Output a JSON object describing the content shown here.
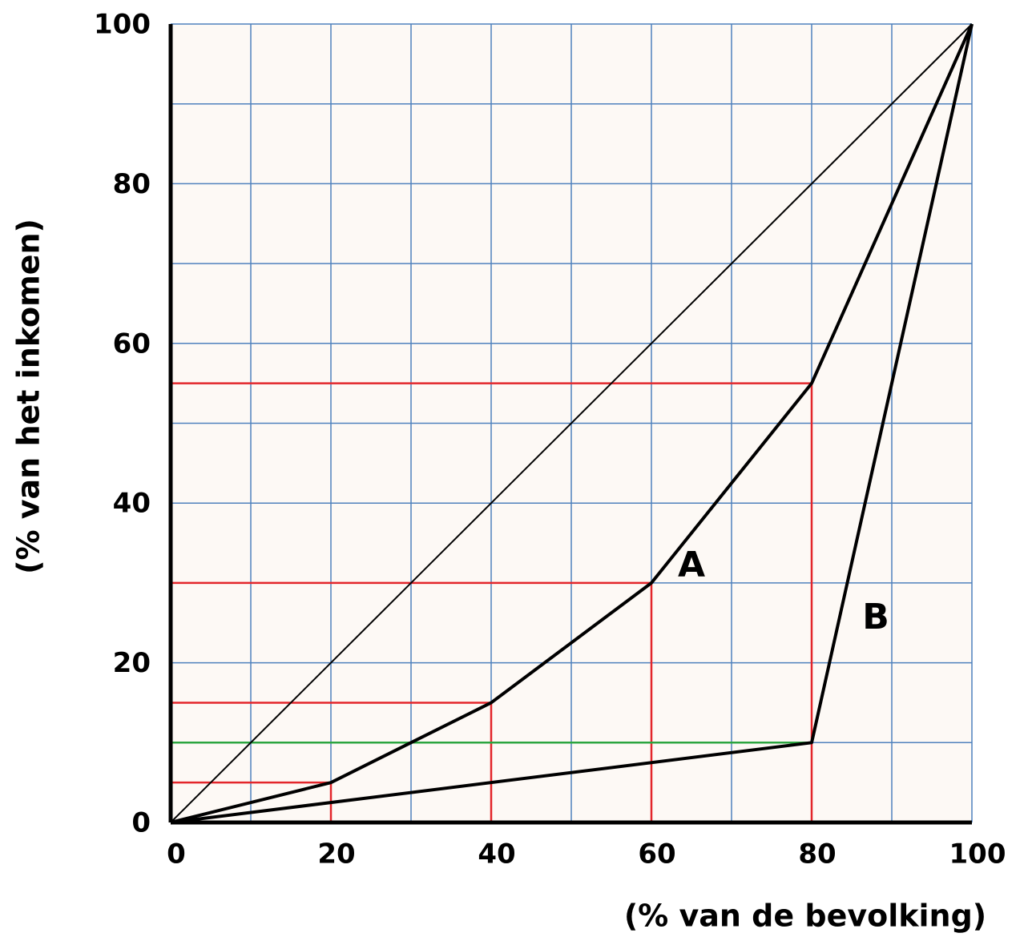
{
  "chart_data": {
    "type": "line",
    "xlabel": "(% van de bevolking)",
    "ylabel": "(% van het inkomen)",
    "xlim": [
      0,
      100
    ],
    "ylim": [
      0,
      100
    ],
    "xticks": [
      0,
      20,
      40,
      60,
      80,
      100
    ],
    "yticks": [
      0,
      20,
      40,
      60,
      80,
      100
    ],
    "xminorticks": [
      10,
      30,
      50,
      70,
      90
    ],
    "yminorticks": [
      10,
      30,
      50,
      70,
      90
    ],
    "grid": true,
    "grid_color": "#4f81bd",
    "background": "#fdf9f5",
    "series": [
      {
        "color": "#000000",
        "line_width": 2,
        "x": [
          0,
          100
        ],
        "values": [
          0,
          100
        ]
      },
      {
        "name": "A",
        "color": "#000000",
        "line_width": 4,
        "guides": "hv",
        "guide_color": "#e3262b",
        "x": [
          0,
          20,
          40,
          60,
          80,
          100
        ],
        "values": [
          0,
          5,
          15,
          30,
          55,
          100
        ],
        "label_at": [
          65,
          32
        ]
      },
      {
        "name": "B",
        "color": "#000000",
        "line_width": 4,
        "guides": "h",
        "guide_color": "#2ca540",
        "x": [
          0,
          80,
          100
        ],
        "values": [
          0,
          10,
          100
        ],
        "label_at": [
          88,
          25.5
        ]
      }
    ]
  }
}
